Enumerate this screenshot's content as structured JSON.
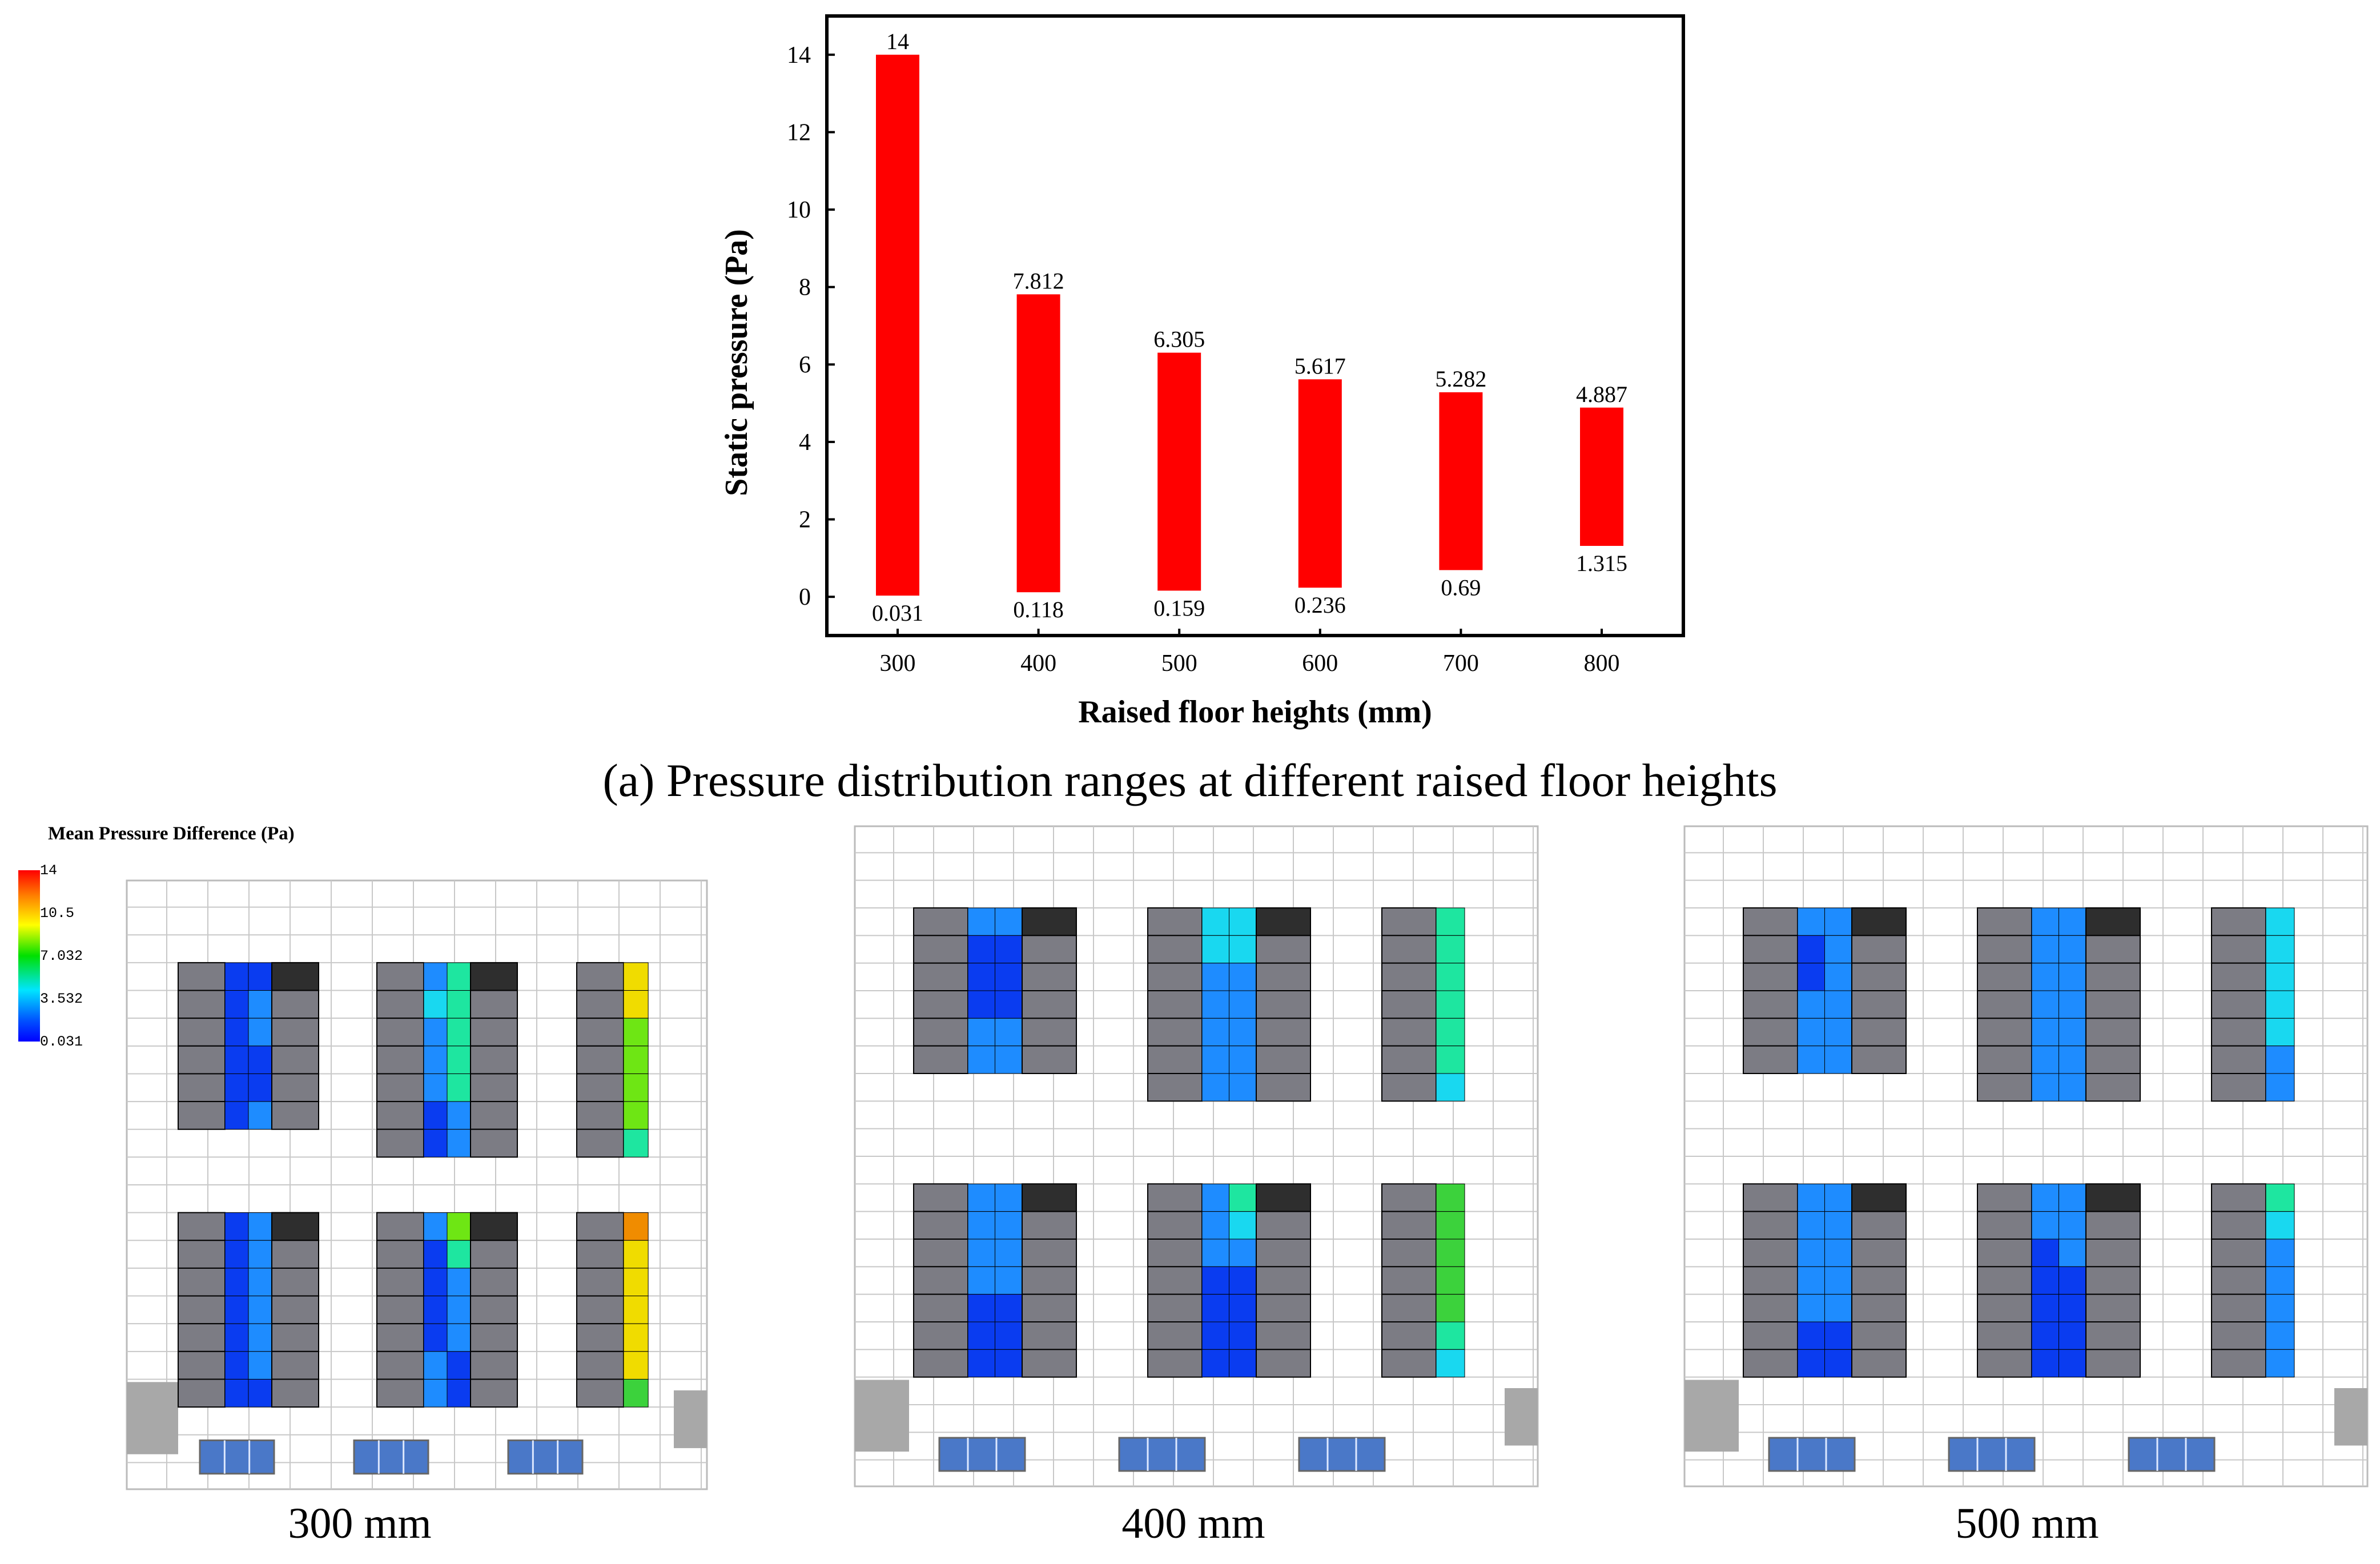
{
  "chart_data": {
    "type": "bar",
    "subtype": "floating-range",
    "categories": [
      "300",
      "400",
      "500",
      "600",
      "700",
      "800"
    ],
    "max_values": [
      14,
      7.812,
      6.305,
      5.617,
      5.282,
      4.887
    ],
    "min_values": [
      0.031,
      0.118,
      0.159,
      0.236,
      0.69,
      1.315
    ],
    "max_labels": [
      "14",
      "7.812",
      "6.305",
      "5.617",
      "5.282",
      "4.887"
    ],
    "min_labels": [
      "0.031",
      "0.118",
      "0.159",
      "0.236",
      "0.69",
      "1.315"
    ],
    "xlabel": "Raised floor heights (mm)",
    "ylabel": "Static pressure (Pa)",
    "ylim": [
      -1,
      15
    ],
    "yticks": [
      0,
      2,
      4,
      6,
      8,
      10,
      12,
      14
    ],
    "bar_color": "#ff0000",
    "grid": false
  },
  "caption": "(a) Pressure distribution ranges at different raised floor heights",
  "legend": {
    "title": "Mean Pressure Difference (Pa)",
    "ticks": [
      "14",
      "10.5",
      "7.032",
      "3.532",
      "0.031"
    ]
  },
  "panels": [
    {
      "label": "300 mm",
      "groups": [
        {
          "rows": 6,
          "cells": [
            [
              0,
              0
            ],
            [
              0,
              1
            ],
            [
              0,
              1
            ],
            [
              0,
              0
            ],
            [
              0,
              0
            ],
            [
              0,
              1
            ]
          ],
          "dark": true
        },
        {
          "rows": 7,
          "cells": [
            [
              1,
              3
            ],
            [
              2,
              3
            ],
            [
              1,
              3
            ],
            [
              1,
              3
            ],
            [
              1,
              3
            ],
            [
              0,
              1
            ],
            [
              0,
              1
            ]
          ],
          "dark": true
        },
        {
          "rows": 7,
          "cells": [
            [
              6
            ],
            [
              6
            ],
            [
              5
            ],
            [
              5
            ],
            [
              5
            ],
            [
              5
            ],
            [
              3
            ]
          ],
          "dark": false
        },
        {
          "rows": 7,
          "cells": [
            [
              0,
              1
            ],
            [
              0,
              1
            ],
            [
              0,
              1
            ],
            [
              0,
              1
            ],
            [
              0,
              1
            ],
            [
              0,
              1
            ],
            [
              0,
              0
            ]
          ],
          "dark": true
        },
        {
          "rows": 7,
          "cells": [
            [
              1,
              5
            ],
            [
              0,
              3
            ],
            [
              0,
              1
            ],
            [
              0,
              1
            ],
            [
              0,
              1
            ],
            [
              1,
              0
            ],
            [
              1,
              0
            ]
          ],
          "dark": true
        },
        {
          "rows": 7,
          "cells": [
            [
              7
            ],
            [
              6
            ],
            [
              6
            ],
            [
              6
            ],
            [
              6
            ],
            [
              6
            ],
            [
              4
            ]
          ],
          "dark": false
        }
      ]
    },
    {
      "label": "400 mm",
      "groups": [
        {
          "rows": 6,
          "cells": [
            [
              1,
              1
            ],
            [
              0,
              0
            ],
            [
              0,
              0
            ],
            [
              0,
              0
            ],
            [
              1,
              1
            ],
            [
              1,
              1
            ]
          ],
          "dark": true
        },
        {
          "rows": 7,
          "cells": [
            [
              2,
              2
            ],
            [
              2,
              2
            ],
            [
              1,
              1
            ],
            [
              1,
              1
            ],
            [
              1,
              1
            ],
            [
              1,
              1
            ],
            [
              1,
              1
            ]
          ],
          "dark": true
        },
        {
          "rows": 7,
          "cells": [
            [
              3
            ],
            [
              3
            ],
            [
              3
            ],
            [
              3
            ],
            [
              3
            ],
            [
              3
            ],
            [
              2
            ]
          ],
          "dark": false
        },
        {
          "rows": 7,
          "cells": [
            [
              1,
              1
            ],
            [
              1,
              1
            ],
            [
              1,
              1
            ],
            [
              1,
              1
            ],
            [
              0,
              0
            ],
            [
              0,
              0
            ],
            [
              0,
              0
            ]
          ],
          "dark": true
        },
        {
          "rows": 7,
          "cells": [
            [
              1,
              3
            ],
            [
              1,
              2
            ],
            [
              1,
              1
            ],
            [
              0,
              0
            ],
            [
              0,
              0
            ],
            [
              0,
              0
            ],
            [
              0,
              0
            ]
          ],
          "dark": true
        },
        {
          "rows": 7,
          "cells": [
            [
              4
            ],
            [
              4
            ],
            [
              4
            ],
            [
              4
            ],
            [
              4
            ],
            [
              3
            ],
            [
              2
            ]
          ],
          "dark": false
        }
      ]
    },
    {
      "label": "500 mm",
      "groups": [
        {
          "rows": 6,
          "cells": [
            [
              1,
              1
            ],
            [
              0,
              1
            ],
            [
              0,
              1
            ],
            [
              1,
              1
            ],
            [
              1,
              1
            ],
            [
              1,
              1
            ]
          ],
          "dark": true
        },
        {
          "rows": 7,
          "cells": [
            [
              1,
              1
            ],
            [
              1,
              1
            ],
            [
              1,
              1
            ],
            [
              1,
              1
            ],
            [
              1,
              1
            ],
            [
              1,
              1
            ],
            [
              1,
              1
            ]
          ],
          "dark": true
        },
        {
          "rows": 7,
          "cells": [
            [
              2
            ],
            [
              2
            ],
            [
              2
            ],
            [
              2
            ],
            [
              2
            ],
            [
              1
            ],
            [
              1
            ]
          ],
          "dark": false
        },
        {
          "rows": 7,
          "cells": [
            [
              1,
              1
            ],
            [
              1,
              1
            ],
            [
              1,
              1
            ],
            [
              1,
              1
            ],
            [
              1,
              1
            ],
            [
              0,
              0
            ],
            [
              0,
              0
            ]
          ],
          "dark": true
        },
        {
          "rows": 7,
          "cells": [
            [
              1,
              1
            ],
            [
              1,
              1
            ],
            [
              0,
              1
            ],
            [
              0,
              0
            ],
            [
              0,
              0
            ],
            [
              0,
              0
            ],
            [
              0,
              0
            ]
          ],
          "dark": true
        },
        {
          "rows": 7,
          "cells": [
            [
              3
            ],
            [
              2
            ],
            [
              1
            ],
            [
              1
            ],
            [
              1
            ],
            [
              1
            ],
            [
              1
            ]
          ],
          "dark": false
        }
      ]
    }
  ],
  "colors": {
    "palette": [
      "#0a3cf0",
      "#1e8cff",
      "#19d8f0",
      "#1ee6a0",
      "#3cd23c",
      "#6ee614",
      "#f0dc00",
      "#f08c00",
      "#f00000"
    ],
    "rack": "#7c7c84",
    "rack_dark": "#2e2e2e",
    "grid_line": "#c8c8c8",
    "crac": "#a8a8a8",
    "vent": "#4a78c8"
  }
}
